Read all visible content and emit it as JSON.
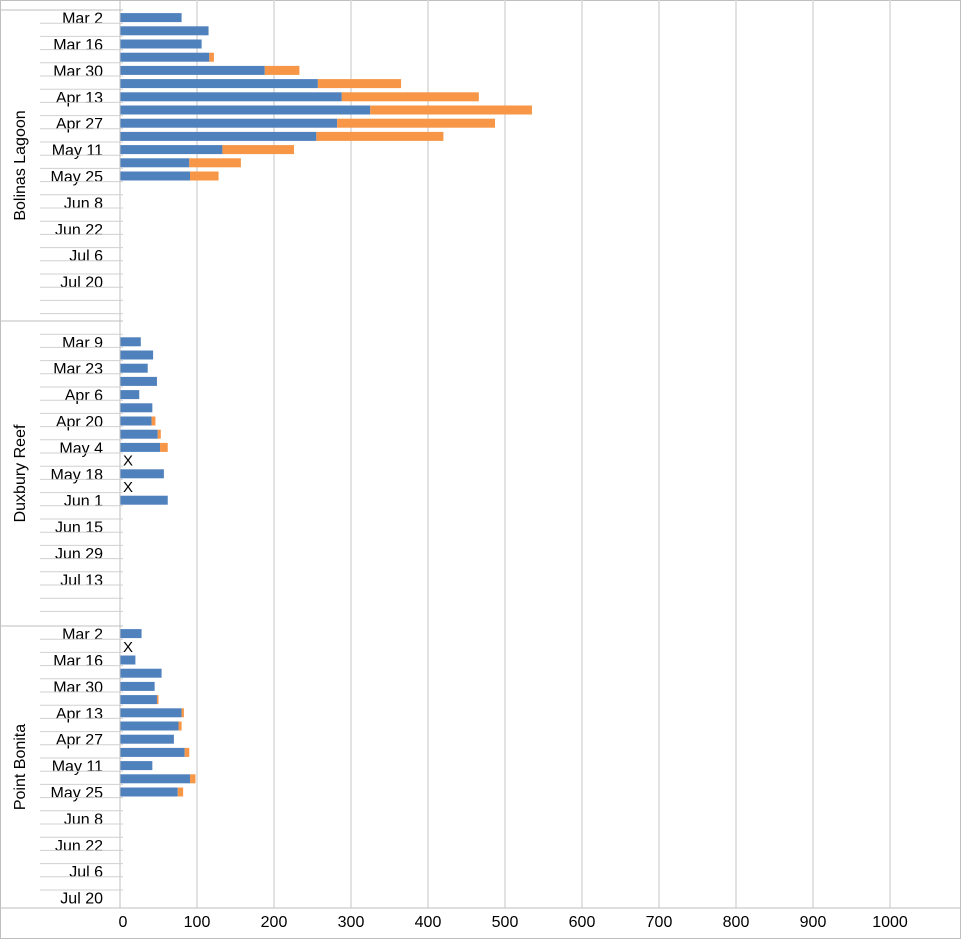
{
  "chart_data": {
    "type": "bar",
    "orientation": "horizontal",
    "stacked": true,
    "xlim": [
      0,
      1000
    ],
    "x_ticks": [
      0,
      100,
      200,
      300,
      400,
      500,
      600,
      700,
      800,
      900,
      1000
    ],
    "grid": true,
    "legend": "none",
    "missing_marker": "X",
    "series_colors": [
      "#4F81BD",
      "#F79646"
    ],
    "groups": [
      {
        "name": "Bolinas Lagoon",
        "labels": [
          "Mar 2",
          "Mar 16",
          "Mar 30",
          "Apr 13",
          "Apr 27",
          "May 11",
          "May 25",
          "Jun 8",
          "Jun 22",
          "Jul 6",
          "Jul 20"
        ],
        "series": [
          {
            "values": [
              80,
              115,
              106,
              116,
              188,
              257,
              288,
              325,
              282,
              255,
              133,
              90,
              91,
              null,
              null,
              null,
              null,
              null,
              null,
              null,
              null,
              null
            ]
          },
          {
            "values": [
              0,
              0,
              0,
              6,
              45,
              108,
              178,
              210,
              205,
              165,
              93,
              67,
              37,
              null,
              null,
              null,
              null,
              null,
              null,
              null,
              null,
              null
            ]
          }
        ]
      },
      {
        "name": "Duxbury Reef",
        "labels": [
          "Mar 9",
          "Mar 23",
          "Apr 6",
          "Apr 20",
          "May 4",
          "May 18",
          "Jun 1",
          "Jun 15",
          "Jun 29",
          "Jul 13"
        ],
        "series": [
          {
            "values": [
              null,
              27,
              43,
              36,
              48,
              25,
              42,
              41,
              49,
              52,
              "X",
              57,
              "X",
              62,
              null,
              null,
              null,
              null,
              null,
              null,
              null,
              null
            ]
          },
          {
            "values": [
              null,
              0,
              0,
              0,
              0,
              0,
              0,
              5,
              4,
              10,
              "X",
              0,
              "X",
              0,
              null,
              null,
              null,
              null,
              null,
              null,
              null,
              null
            ]
          }
        ]
      },
      {
        "name": "Point Bonita",
        "labels": [
          "Mar 2",
          "Mar 16",
          "Mar 30",
          "Apr 13",
          "Apr 27",
          "May 11",
          "May 25",
          "Jun 8",
          "Jun 22",
          "Jul 6",
          "Jul 20"
        ],
        "series": [
          {
            "values": [
              28,
              "X",
              20,
              54,
              45,
              48,
              80,
              76,
              70,
              84,
              42,
              91,
              75,
              null,
              null,
              null,
              null,
              null,
              null,
              null,
              null,
              null
            ]
          },
          {
            "values": [
              0,
              "X",
              0,
              0,
              0,
              2,
              3,
              4,
              0,
              6,
              0,
              7,
              7,
              null,
              null,
              null,
              null,
              null,
              null,
              null,
              null,
              null
            ]
          }
        ]
      }
    ]
  }
}
